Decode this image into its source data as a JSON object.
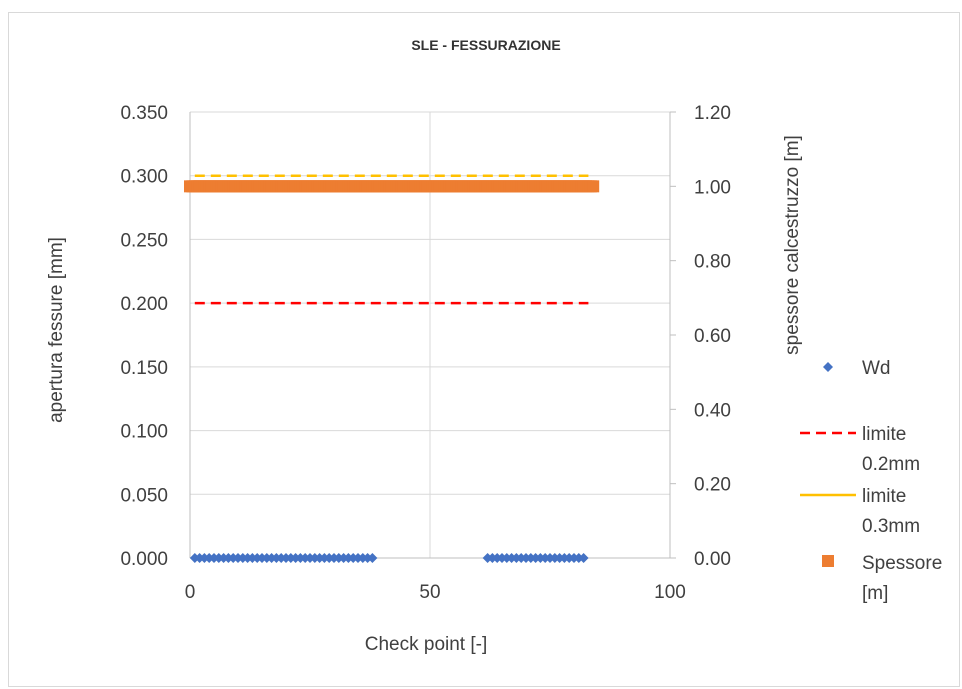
{
  "chart_data": {
    "type": "scatter",
    "title": "SLE - FESSURAZIONE",
    "xlabel": "Check point [-]",
    "ylabel": "apertura fessure [mm]",
    "y2label": "spessore calcestruzzo [m]",
    "xlim": [
      0,
      100
    ],
    "ylim": [
      0,
      0.35
    ],
    "y2lim": [
      0,
      1.2
    ],
    "x_ticks": [
      "0",
      "50",
      "100"
    ],
    "y_ticks": [
      "0.000",
      "0.050",
      "0.100",
      "0.150",
      "0.200",
      "0.250",
      "0.300",
      "0.350"
    ],
    "y2_ticks": [
      "0.00",
      "0.20",
      "0.40",
      "0.60",
      "0.80",
      "1.00",
      "1.20"
    ],
    "grid": true,
    "legend_position": "right",
    "series": [
      {
        "name": "Wd",
        "kind": "markers",
        "marker": "diamond",
        "color": "#4472C4",
        "axis": "y",
        "x": [
          1,
          2,
          3,
          4,
          5,
          6,
          7,
          8,
          9,
          10,
          11,
          12,
          13,
          14,
          15,
          16,
          17,
          18,
          19,
          20,
          21,
          22,
          23,
          24,
          25,
          26,
          27,
          28,
          29,
          30,
          31,
          32,
          33,
          34,
          35,
          36,
          37,
          38,
          62,
          63,
          64,
          65,
          66,
          67,
          68,
          69,
          70,
          71,
          72,
          73,
          74,
          75,
          76,
          77,
          78,
          79,
          80,
          81,
          82
        ],
        "y": [
          0,
          0,
          0,
          0,
          0,
          0,
          0,
          0,
          0,
          0,
          0,
          0,
          0,
          0,
          0,
          0,
          0,
          0,
          0,
          0,
          0,
          0,
          0,
          0,
          0,
          0,
          0,
          0,
          0,
          0,
          0,
          0,
          0,
          0,
          0,
          0,
          0,
          0,
          0,
          0,
          0,
          0,
          0,
          0,
          0,
          0,
          0,
          0,
          0,
          0,
          0,
          0,
          0,
          0,
          0,
          0,
          0,
          0,
          0
        ]
      },
      {
        "name": "limite 0.2mm",
        "kind": "dashed-line",
        "color": "#FF0000",
        "axis": "y",
        "x": [
          1,
          83
        ],
        "y": [
          0.2,
          0.2
        ]
      },
      {
        "name": "limite 0.3mm",
        "kind": "dashed-line",
        "color": "#FFC000",
        "axis": "y",
        "x": [
          1,
          83
        ],
        "y": [
          0.3,
          0.3
        ]
      },
      {
        "name": "Spessore [m]",
        "kind": "square-markers",
        "color": "#ED7D31",
        "axis": "y2",
        "x": [
          0,
          84
        ],
        "y": [
          1.0,
          1.0
        ]
      }
    ],
    "legend": [
      {
        "lines": [
          "Wd"
        ],
        "symbol": "diamond",
        "color": "#4472C4"
      },
      {
        "lines": [
          "limite",
          "0.2mm"
        ],
        "symbol": "dashed",
        "color": "#FF0000"
      },
      {
        "lines": [
          "limite",
          "0.3mm"
        ],
        "symbol": "solid",
        "color": "#FFC000"
      },
      {
        "lines": [
          "Spessore",
          "[m]"
        ],
        "symbol": "square",
        "color": "#ED7D31"
      }
    ]
  }
}
